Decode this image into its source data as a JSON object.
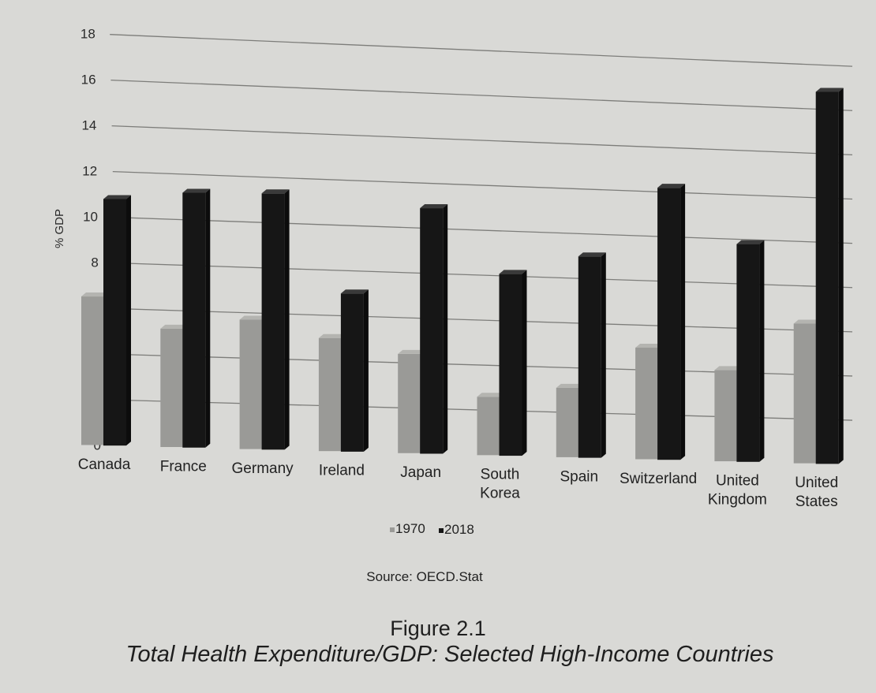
{
  "chart_data": {
    "type": "bar",
    "ylabel": "% GDP",
    "ylim": [
      0,
      18
    ],
    "yticks": [
      0,
      2,
      4,
      6,
      8,
      10,
      12,
      14,
      16,
      18
    ],
    "grid": true,
    "categories": [
      [
        "Canada"
      ],
      [
        "France"
      ],
      [
        "Germany"
      ],
      [
        "Ireland"
      ],
      [
        "Japan"
      ],
      [
        "South",
        "Korea"
      ],
      [
        "Spain"
      ],
      [
        "Switzerland"
      ],
      [
        "United",
        "Kingdom"
      ],
      [
        "United",
        "States"
      ]
    ],
    "series": [
      {
        "name": "1970",
        "color": "#9a9a97",
        "values": [
          6.5,
          5.2,
          5.7,
          5.0,
          4.4,
          2.6,
          3.1,
          5.0,
          4.1,
          6.3
        ]
      },
      {
        "name": "2018",
        "color": "#161616",
        "values": [
          10.8,
          11.2,
          11.3,
          7.0,
          10.9,
          8.1,
          9.0,
          12.2,
          9.8,
          16.8
        ]
      }
    ],
    "legend_position": "bottom-center",
    "source": "Source: OECD.Stat"
  },
  "figure": {
    "label": "Figure 2.1",
    "caption": "Total Health Expenditure/GDP: Selected High-Income Countries"
  }
}
